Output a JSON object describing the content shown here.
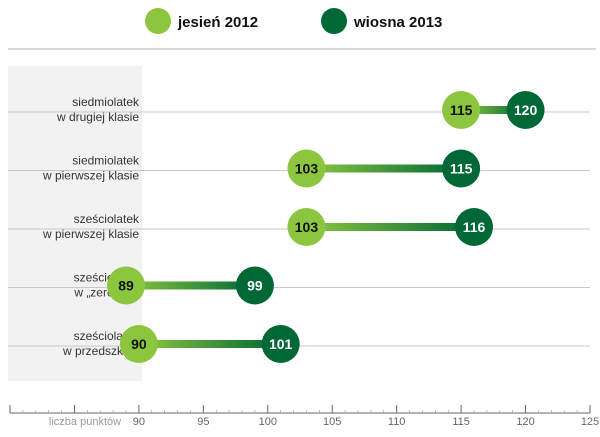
{
  "chart_data": {
    "type": "dumbbell",
    "legend": {
      "placement": "top-center",
      "items": [
        {
          "label": "jesień 2012",
          "color": "#8cc63f"
        },
        {
          "label": "wiosna 2013",
          "color": "#006837"
        }
      ]
    },
    "categories": [
      {
        "line1": "siedmiolatek",
        "line2": "w drugiej klasie"
      },
      {
        "line1": "siedmiolatek",
        "line2": "w pierwszej klasie"
      },
      {
        "line1": "sześciolatek",
        "line2": "w pierwszej klasie"
      },
      {
        "line1": "sześciolatek",
        "line2": "w „zerówce”"
      },
      {
        "line1": "sześciolatek",
        "line2": "w przedszkolu"
      }
    ],
    "series": [
      {
        "name": "jesień 2012",
        "values": [
          115,
          103,
          103,
          89,
          90
        ]
      },
      {
        "name": "wiosna 2013",
        "values": [
          120,
          115,
          116,
          99,
          101
        ]
      }
    ],
    "x_axis": {
      "title": "liczba punktów",
      "min": 80,
      "max": 125,
      "ticks": [
        90,
        95,
        100,
        105,
        110,
        115,
        120,
        125
      ]
    },
    "colors": {
      "autumn": "#8cc63f",
      "spring": "#006837",
      "label_panel": "#f2f2f2",
      "gridline": "#c8c8c8"
    }
  }
}
